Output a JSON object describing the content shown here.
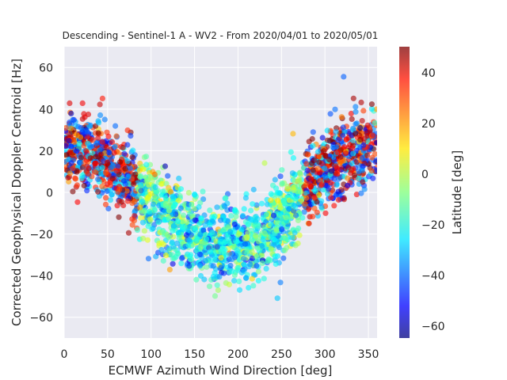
{
  "chart_data": {
    "type": "scatter",
    "title": "Descending - Sentinel-1 A - WV2 - From 2020/04/01 to 2020/05/01",
    "xlabel": "ECMWF Azimuth Wind Direction [deg]",
    "ylabel": "Corrected Geophysical Doppler Centroid [Hz]",
    "xlim": [
      0,
      360
    ],
    "ylim": [
      -70,
      70
    ],
    "xticks": [
      "0",
      "50",
      "100",
      "150",
      "200",
      "250",
      "300",
      "350"
    ],
    "yticks": [
      "−60",
      "−40",
      "−20",
      "0",
      "20",
      "40",
      "60"
    ],
    "grid": true,
    "background": "#eaeaf2",
    "colorbar": {
      "label": "Latitude [deg]",
      "range": [
        -65,
        50
      ],
      "ticks": [
        "−60",
        "−40",
        "−20",
        "0",
        "20",
        "40"
      ],
      "colormap": "jet"
    },
    "series": [
      {
        "approximate_trend": {
          "x": [
            0,
            25,
            50,
            75,
            100,
            125,
            150,
            175,
            200,
            225,
            250,
            275,
            300,
            325,
            350,
            360
          ],
          "y": [
            22,
            20,
            14,
            6,
            -4,
            -14,
            -21,
            -25,
            -26,
            -22,
            -13,
            0,
            11,
            18,
            22,
            22
          ]
        },
        "latitude_color_pattern": "high |latitude| (red / blue) near 0° and 360°; mid / low latitudes (green / yellow) near 150–250°",
        "approximate_point_count": 2400
      }
    ]
  }
}
